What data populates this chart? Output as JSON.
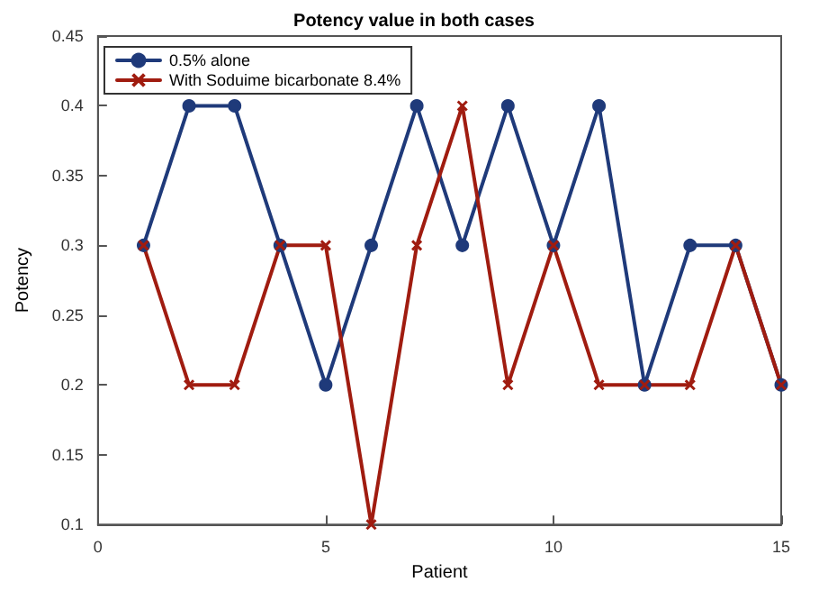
{
  "chart_data": {
    "type": "line",
    "title": "Potency value in both cases",
    "xlabel": "Patient",
    "ylabel": "Potency",
    "x": [
      1,
      2,
      3,
      4,
      5,
      6,
      7,
      8,
      9,
      10,
      11,
      12,
      13,
      14,
      15
    ],
    "series": [
      {
        "name": "0.5% alone",
        "color": "#1f3a7a",
        "marker": "circle",
        "values": [
          0.3,
          0.4,
          0.4,
          0.3,
          0.2,
          0.3,
          0.4,
          0.3,
          0.4,
          0.3,
          0.4,
          0.2,
          0.3,
          0.3,
          0.2
        ]
      },
      {
        "name": "With Soduime bicarbonate 8.4%",
        "color": "#a01c10",
        "marker": "cross",
        "values": [
          0.3,
          0.2,
          0.2,
          0.3,
          0.3,
          0.1,
          0.3,
          0.4,
          0.2,
          0.3,
          0.2,
          0.2,
          0.2,
          0.3,
          0.2
        ]
      }
    ],
    "xlim": [
      0,
      15
    ],
    "xticks": [
      0,
      5,
      10,
      15
    ],
    "ylim": [
      0.1,
      0.45
    ],
    "yticks": [
      0.1,
      0.15,
      0.2,
      0.25,
      0.3,
      0.35,
      0.4,
      0.45
    ],
    "legend": "top left",
    "grid": false,
    "line_style": "solid"
  }
}
